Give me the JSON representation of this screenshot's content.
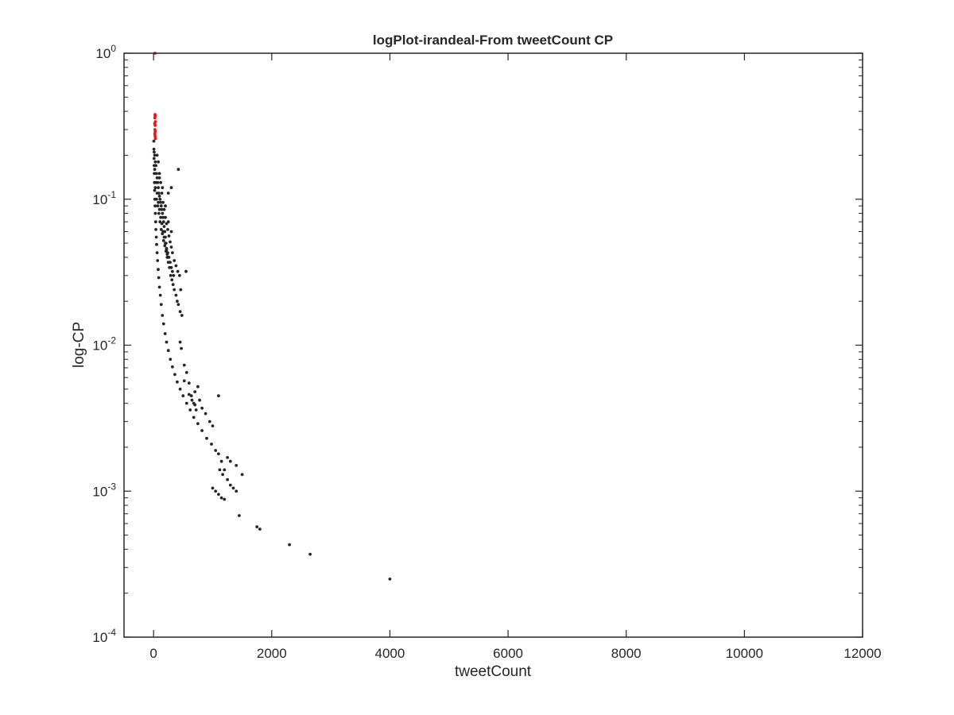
{
  "chart_data": {
    "type": "scatter",
    "title": "logPlot-irandeal-From tweetCount CP",
    "xlabel": "tweetCount",
    "ylabel": "log-CP",
    "xlim": [
      -500,
      12000
    ],
    "ylim": [
      0.0001,
      1
    ],
    "yscale": "log",
    "grid": false,
    "box": true,
    "x_ticks": [
      0,
      2000,
      4000,
      6000,
      8000,
      10000,
      12000
    ],
    "x_tick_labels": [
      "0",
      "2000",
      "4000",
      "6000",
      "8000",
      "10000",
      "12000"
    ],
    "y_ticks": [
      0.0001,
      0.001,
      0.01,
      0.1,
      1
    ],
    "y_tick_labels": [
      {
        "base": "10",
        "exp": "-4"
      },
      {
        "base": "10",
        "exp": "-3"
      },
      {
        "base": "10",
        "exp": "-2"
      },
      {
        "base": "10",
        "exp": "-1"
      },
      {
        "base": "10",
        "exp": "0"
      }
    ],
    "series": [
      {
        "color": "#262626",
        "points": [
          [
            4,
            0.25
          ],
          [
            6,
            0.22
          ],
          [
            8,
            0.19
          ],
          [
            10,
            0.17
          ],
          [
            12,
            0.15
          ],
          [
            15,
            0.13
          ],
          [
            18,
            0.115
          ],
          [
            22,
            0.1
          ],
          [
            26,
            0.09
          ],
          [
            30,
            0.08
          ],
          [
            35,
            0.07
          ],
          [
            40,
            0.062
          ],
          [
            46,
            0.055
          ],
          [
            52,
            0.049
          ],
          [
            60,
            0.043
          ],
          [
            68,
            0.038
          ],
          [
            78,
            0.033
          ],
          [
            88,
            0.029
          ],
          [
            100,
            0.025
          ],
          [
            115,
            0.022
          ],
          [
            130,
            0.019
          ],
          [
            150,
            0.016
          ],
          [
            170,
            0.014
          ],
          [
            195,
            0.012
          ],
          [
            220,
            0.0105
          ],
          [
            250,
            0.0092
          ],
          [
            285,
            0.008
          ],
          [
            320,
            0.0071
          ],
          [
            360,
            0.0063
          ],
          [
            400,
            0.0056
          ],
          [
            450,
            0.005
          ],
          [
            500,
            0.0045
          ],
          [
            560,
            0.004
          ],
          [
            620,
            0.0036
          ],
          [
            680,
            0.0032
          ],
          [
            750,
            0.0029
          ],
          [
            820,
            0.0026
          ],
          [
            900,
            0.0023
          ],
          [
            980,
            0.0021
          ],
          [
            1050,
            0.0019
          ],
          [
            1100,
            0.0018
          ],
          [
            1150,
            0.0016
          ],
          [
            1200,
            0.0014
          ],
          [
            1000,
            0.00105
          ],
          [
            1050,
            0.001
          ],
          [
            1100,
            0.00095
          ],
          [
            1150,
            0.0009
          ],
          [
            1200,
            0.00088
          ],
          [
            1450,
            0.00068
          ],
          [
            1750,
            0.00057
          ],
          [
            1800,
            0.00055
          ],
          [
            2300,
            0.00043
          ],
          [
            2650,
            0.00037
          ],
          [
            4000,
            0.00025
          ],
          [
            10,
            0.21
          ],
          [
            20,
            0.2
          ],
          [
            30,
            0.18
          ],
          [
            40,
            0.17
          ],
          [
            50,
            0.15
          ],
          [
            60,
            0.14
          ],
          [
            70,
            0.13
          ],
          [
            80,
            0.12
          ],
          [
            90,
            0.11
          ],
          [
            100,
            0.105
          ],
          [
            110,
            0.1
          ],
          [
            120,
            0.095
          ],
          [
            130,
            0.09
          ],
          [
            140,
            0.085
          ],
          [
            150,
            0.08
          ],
          [
            160,
            0.075
          ],
          [
            170,
            0.07
          ],
          [
            180,
            0.065
          ],
          [
            190,
            0.06
          ],
          [
            200,
            0.055
          ],
          [
            210,
            0.05
          ],
          [
            220,
            0.045
          ],
          [
            230,
            0.042
          ],
          [
            240,
            0.04
          ],
          [
            20,
            0.16
          ],
          [
            40,
            0.13
          ],
          [
            60,
            0.11
          ],
          [
            80,
            0.095
          ],
          [
            100,
            0.085
          ],
          [
            120,
            0.075
          ],
          [
            140,
            0.068
          ],
          [
            160,
            0.06
          ],
          [
            180,
            0.055
          ],
          [
            200,
            0.05
          ],
          [
            220,
            0.046
          ],
          [
            240,
            0.043
          ],
          [
            260,
            0.04
          ],
          [
            280,
            0.037
          ],
          [
            300,
            0.034
          ],
          [
            320,
            0.032
          ],
          [
            340,
            0.03
          ],
          [
            30,
            0.12
          ],
          [
            50,
            0.1
          ],
          [
            70,
            0.09
          ],
          [
            90,
            0.08
          ],
          [
            110,
            0.07
          ],
          [
            130,
            0.062
          ],
          [
            150,
            0.058
          ],
          [
            170,
            0.052
          ],
          [
            190,
            0.048
          ],
          [
            210,
            0.044
          ],
          [
            230,
            0.04
          ],
          [
            250,
            0.037
          ],
          [
            270,
            0.034
          ],
          [
            290,
            0.03
          ],
          [
            310,
            0.028
          ],
          [
            330,
            0.026
          ],
          [
            350,
            0.024
          ],
          [
            380,
            0.022
          ],
          [
            400,
            0.02
          ],
          [
            420,
            0.019
          ],
          [
            450,
            0.017
          ],
          [
            480,
            0.016
          ],
          [
            60,
            0.2
          ],
          [
            80,
            0.18
          ],
          [
            100,
            0.15
          ],
          [
            120,
            0.13
          ],
          [
            140,
            0.11
          ],
          [
            160,
            0.095
          ],
          [
            180,
            0.085
          ],
          [
            200,
            0.075
          ],
          [
            220,
            0.068
          ],
          [
            240,
            0.062
          ],
          [
            260,
            0.056
          ],
          [
            280,
            0.051
          ],
          [
            300,
            0.047
          ],
          [
            320,
            0.043
          ],
          [
            350,
            0.038
          ],
          [
            380,
            0.035
          ],
          [
            410,
            0.032
          ],
          [
            440,
            0.03
          ],
          [
            420,
            0.16
          ],
          [
            550,
            0.032
          ],
          [
            460,
            0.024
          ],
          [
            100,
            0.14
          ],
          [
            150,
            0.12
          ],
          [
            200,
            0.09
          ],
          [
            250,
            0.07
          ],
          [
            300,
            0.06
          ],
          [
            300,
            0.12
          ],
          [
            250,
            0.11
          ],
          [
            450,
            0.0105
          ],
          [
            470,
            0.0095
          ],
          [
            520,
            0.0073
          ],
          [
            560,
            0.0065
          ],
          [
            600,
            0.0055
          ],
          [
            700,
            0.0048
          ],
          [
            750,
            0.0052
          ],
          [
            780,
            0.0042
          ],
          [
            820,
            0.0037
          ],
          [
            880,
            0.0034
          ],
          [
            950,
            0.003
          ],
          [
            1000,
            0.0028
          ],
          [
            1100,
            0.0045
          ],
          [
            1250,
            0.0017
          ],
          [
            1300,
            0.0016
          ],
          [
            1400,
            0.0015
          ],
          [
            1500,
            0.0013
          ],
          [
            1120,
            0.0014
          ],
          [
            1170,
            0.0013
          ],
          [
            1250,
            0.0012
          ],
          [
            1300,
            0.0011
          ],
          [
            1350,
            0.00105
          ],
          [
            1400,
            0.001
          ],
          [
            650,
            0.0042
          ],
          [
            700,
            0.0039
          ],
          [
            720,
            0.0036
          ],
          [
            600,
            0.0046
          ],
          [
            520,
            0.0057
          ],
          [
            640,
            0.0045
          ],
          [
            680,
            0.004
          ]
        ]
      },
      {
        "color": "#e8141a",
        "points": [
          [
            25,
            1
          ],
          [
            25,
            0.38
          ],
          [
            28,
            0.37
          ],
          [
            22,
            0.36
          ],
          [
            30,
            0.34
          ],
          [
            20,
            0.33
          ],
          [
            26,
            0.32
          ],
          [
            24,
            0.3
          ],
          [
            28,
            0.29
          ],
          [
            22,
            0.28
          ],
          [
            26,
            0.27
          ],
          [
            30,
            0.26
          ]
        ]
      }
    ]
  }
}
